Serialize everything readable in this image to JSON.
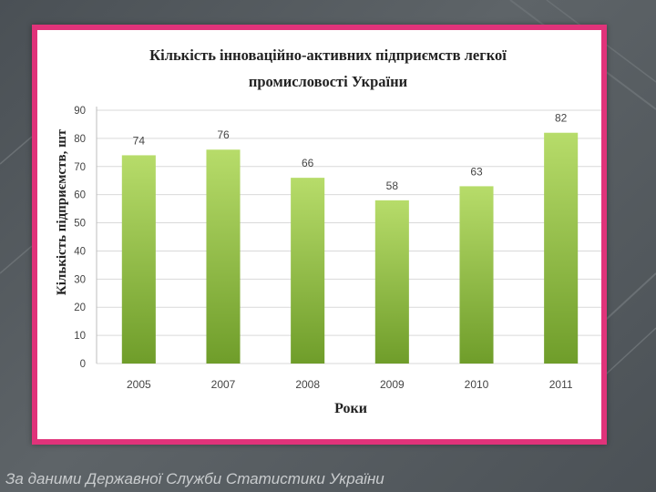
{
  "chart_data": {
    "type": "bar",
    "title_lines": [
      "Кількість інноваційно-активних підприємств легкої",
      "промисловості України"
    ],
    "xlabel": "Роки",
    "ylabel": "Кількість підприємств, шт",
    "categories": [
      "2005",
      "2007",
      "2008",
      "2009",
      "2010",
      "2011"
    ],
    "values": [
      74,
      76,
      66,
      58,
      63,
      82
    ],
    "data_labels": [
      "74",
      "76",
      "66",
      "58",
      "63",
      "82"
    ],
    "ylim": [
      0,
      90
    ],
    "yticks": [
      0,
      10,
      20,
      30,
      40,
      50,
      60,
      70,
      80,
      90
    ],
    "grid": true,
    "legend": "none",
    "colors": {
      "bar_light": "#b7dc6a",
      "bar_dark": "#6f9d2a",
      "grid": "#d9d9d9",
      "frame": "#e0337a"
    }
  },
  "footer": {
    "source": "За даними Державної Служби Статистики України"
  }
}
